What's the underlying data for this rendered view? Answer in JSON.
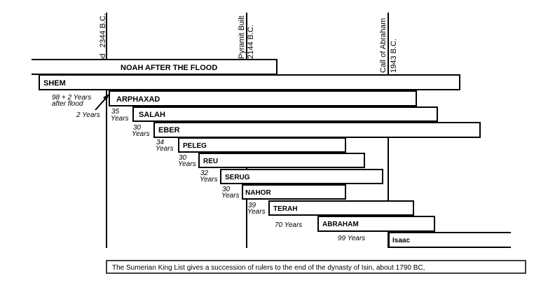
{
  "timeline": {
    "events": [
      {
        "id": "flood",
        "lines": [
          "Flood",
          "2344 B.C."
        ]
      },
      {
        "id": "pyramid",
        "lines": [
          "Pyramit Built",
          "2144 B.C."
        ]
      },
      {
        "id": "abraham-call",
        "lines": [
          "Call of Abraham",
          "1943 B.C."
        ]
      }
    ],
    "bars": [
      {
        "id": "noah",
        "label": "NOAH AFTER THE FLOOD"
      },
      {
        "id": "shem",
        "label": "SHEM"
      },
      {
        "id": "arphaxad",
        "label": "ARPHAXAD"
      },
      {
        "id": "salah",
        "label": "SALAH"
      },
      {
        "id": "eber",
        "label": "EBER"
      },
      {
        "id": "peleg",
        "label": "PELEG"
      },
      {
        "id": "reu",
        "label": "REU"
      },
      {
        "id": "serug",
        "label": "SERUG"
      },
      {
        "id": "nahor",
        "label": "NAHOR"
      },
      {
        "id": "terah",
        "label": "TERAH"
      },
      {
        "id": "abraham",
        "label": "ABRAHAM"
      },
      {
        "id": "isaac",
        "label": "Isaac"
      }
    ],
    "gap_labels": [
      {
        "id": "shem-arphaxad-1",
        "lines": [
          "98 + 2 Years",
          "after flood"
        ]
      },
      {
        "id": "shem-arphaxad-2",
        "lines": [
          "2 Years"
        ]
      },
      {
        "id": "salah",
        "lines": [
          "35",
          "Years"
        ]
      },
      {
        "id": "eber",
        "lines": [
          "30",
          "Years"
        ]
      },
      {
        "id": "peleg",
        "lines": [
          "34",
          "Years"
        ]
      },
      {
        "id": "reu",
        "lines": [
          "30",
          "Years"
        ]
      },
      {
        "id": "serug",
        "lines": [
          "32",
          "Years"
        ]
      },
      {
        "id": "nahor",
        "lines": [
          "30",
          "Years"
        ]
      },
      {
        "id": "terah",
        "lines": [
          "39",
          "Years"
        ]
      },
      {
        "id": "abraham",
        "lines": [
          "70 Years"
        ]
      },
      {
        "id": "isaac",
        "lines": [
          "99 Years"
        ]
      }
    ],
    "footnote": "The Sumerian King List gives a succession of rulers to the end of the dynasty of Isin, about 1790 BC,"
  }
}
